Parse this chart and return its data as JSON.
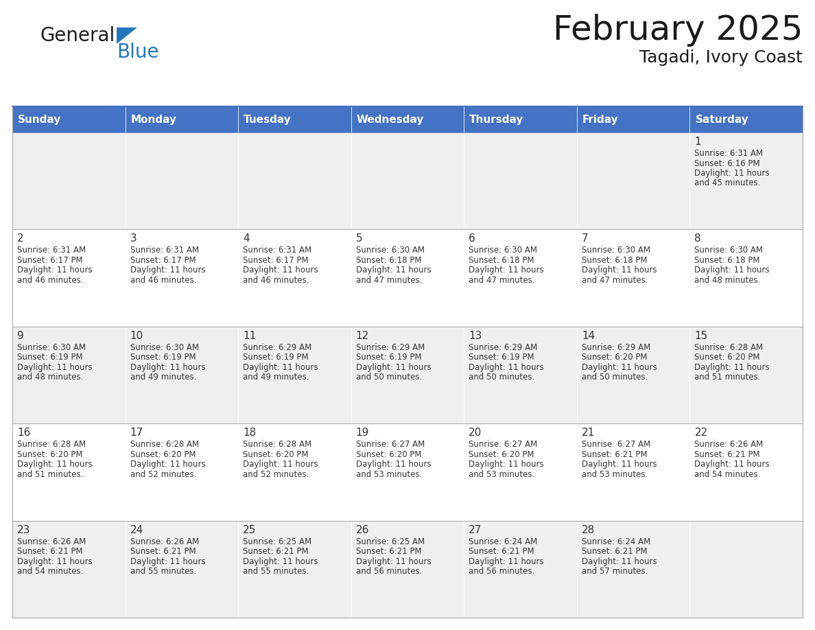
{
  "title": "February 2025",
  "subtitle": "Tagadi, Ivory Coast",
  "header_color": "#4472C4",
  "header_text_color": "#FFFFFF",
  "cell_bg_even": "#EFEFEF",
  "cell_bg_odd": "#FFFFFF",
  "border_color": "#4472C4",
  "text_color": "#333333",
  "day_num_color": "#333333",
  "days_of_week": [
    "Sunday",
    "Monday",
    "Tuesday",
    "Wednesday",
    "Thursday",
    "Friday",
    "Saturday"
  ],
  "weeks": [
    [
      {
        "day": "",
        "sunrise": "",
        "sunset": "",
        "daylight": ""
      },
      {
        "day": "",
        "sunrise": "",
        "sunset": "",
        "daylight": ""
      },
      {
        "day": "",
        "sunrise": "",
        "sunset": "",
        "daylight": ""
      },
      {
        "day": "",
        "sunrise": "",
        "sunset": "",
        "daylight": ""
      },
      {
        "day": "",
        "sunrise": "",
        "sunset": "",
        "daylight": ""
      },
      {
        "day": "",
        "sunrise": "",
        "sunset": "",
        "daylight": ""
      },
      {
        "day": "1",
        "sunrise": "6:31 AM",
        "sunset": "6:16 PM",
        "daylight": "11 hours\nand 45 minutes."
      }
    ],
    [
      {
        "day": "2",
        "sunrise": "6:31 AM",
        "sunset": "6:17 PM",
        "daylight": "11 hours\nand 46 minutes."
      },
      {
        "day": "3",
        "sunrise": "6:31 AM",
        "sunset": "6:17 PM",
        "daylight": "11 hours\nand 46 minutes."
      },
      {
        "day": "4",
        "sunrise": "6:31 AM",
        "sunset": "6:17 PM",
        "daylight": "11 hours\nand 46 minutes."
      },
      {
        "day": "5",
        "sunrise": "6:30 AM",
        "sunset": "6:18 PM",
        "daylight": "11 hours\nand 47 minutes."
      },
      {
        "day": "6",
        "sunrise": "6:30 AM",
        "sunset": "6:18 PM",
        "daylight": "11 hours\nand 47 minutes."
      },
      {
        "day": "7",
        "sunrise": "6:30 AM",
        "sunset": "6:18 PM",
        "daylight": "11 hours\nand 47 minutes."
      },
      {
        "day": "8",
        "sunrise": "6:30 AM",
        "sunset": "6:18 PM",
        "daylight": "11 hours\nand 48 minutes."
      }
    ],
    [
      {
        "day": "9",
        "sunrise": "6:30 AM",
        "sunset": "6:19 PM",
        "daylight": "11 hours\nand 48 minutes."
      },
      {
        "day": "10",
        "sunrise": "6:30 AM",
        "sunset": "6:19 PM",
        "daylight": "11 hours\nand 49 minutes."
      },
      {
        "day": "11",
        "sunrise": "6:29 AM",
        "sunset": "6:19 PM",
        "daylight": "11 hours\nand 49 minutes."
      },
      {
        "day": "12",
        "sunrise": "6:29 AM",
        "sunset": "6:19 PM",
        "daylight": "11 hours\nand 50 minutes."
      },
      {
        "day": "13",
        "sunrise": "6:29 AM",
        "sunset": "6:19 PM",
        "daylight": "11 hours\nand 50 minutes."
      },
      {
        "day": "14",
        "sunrise": "6:29 AM",
        "sunset": "6:20 PM",
        "daylight": "11 hours\nand 50 minutes."
      },
      {
        "day": "15",
        "sunrise": "6:28 AM",
        "sunset": "6:20 PM",
        "daylight": "11 hours\nand 51 minutes."
      }
    ],
    [
      {
        "day": "16",
        "sunrise": "6:28 AM",
        "sunset": "6:20 PM",
        "daylight": "11 hours\nand 51 minutes."
      },
      {
        "day": "17",
        "sunrise": "6:28 AM",
        "sunset": "6:20 PM",
        "daylight": "11 hours\nand 52 minutes."
      },
      {
        "day": "18",
        "sunrise": "6:28 AM",
        "sunset": "6:20 PM",
        "daylight": "11 hours\nand 52 minutes."
      },
      {
        "day": "19",
        "sunrise": "6:27 AM",
        "sunset": "6:20 PM",
        "daylight": "11 hours\nand 53 minutes."
      },
      {
        "day": "20",
        "sunrise": "6:27 AM",
        "sunset": "6:20 PM",
        "daylight": "11 hours\nand 53 minutes."
      },
      {
        "day": "21",
        "sunrise": "6:27 AM",
        "sunset": "6:21 PM",
        "daylight": "11 hours\nand 53 minutes."
      },
      {
        "day": "22",
        "sunrise": "6:26 AM",
        "sunset": "6:21 PM",
        "daylight": "11 hours\nand 54 minutes."
      }
    ],
    [
      {
        "day": "23",
        "sunrise": "6:26 AM",
        "sunset": "6:21 PM",
        "daylight": "11 hours\nand 54 minutes."
      },
      {
        "day": "24",
        "sunrise": "6:26 AM",
        "sunset": "6:21 PM",
        "daylight": "11 hours\nand 55 minutes."
      },
      {
        "day": "25",
        "sunrise": "6:25 AM",
        "sunset": "6:21 PM",
        "daylight": "11 hours\nand 55 minutes."
      },
      {
        "day": "26",
        "sunrise": "6:25 AM",
        "sunset": "6:21 PM",
        "daylight": "11 hours\nand 56 minutes."
      },
      {
        "day": "27",
        "sunrise": "6:24 AM",
        "sunset": "6:21 PM",
        "daylight": "11 hours\nand 56 minutes."
      },
      {
        "day": "28",
        "sunrise": "6:24 AM",
        "sunset": "6:21 PM",
        "daylight": "11 hours\nand 57 minutes."
      },
      {
        "day": "",
        "sunrise": "",
        "sunset": "",
        "daylight": ""
      }
    ]
  ],
  "logo_general_color": "#1a1a1a",
  "logo_blue_color": "#2277BB",
  "logo_triangle_color": "#2277BB",
  "title_fontsize": 36,
  "subtitle_fontsize": 18,
  "header_fontsize": 11,
  "cell_day_fontsize": 11,
  "cell_text_fontsize": 8.5
}
